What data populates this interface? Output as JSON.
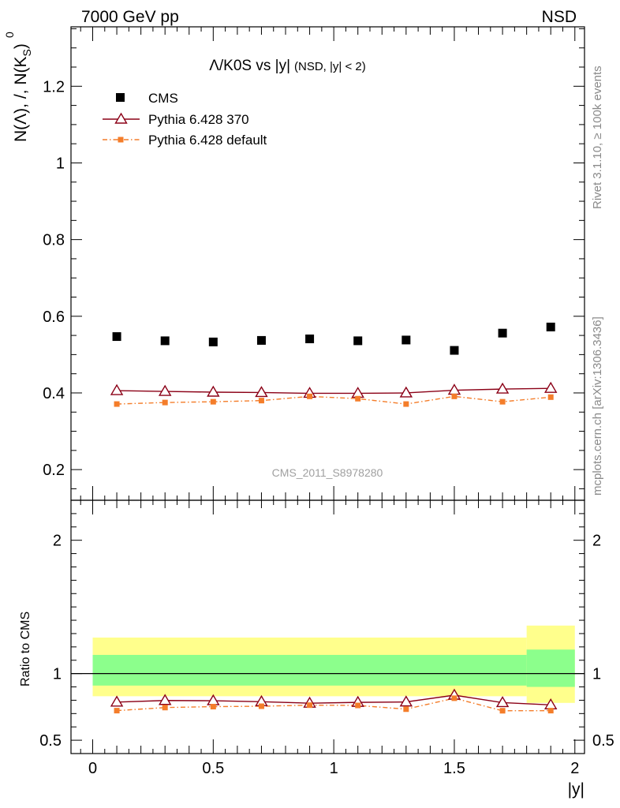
{
  "header": {
    "left": "7000 GeV pp",
    "right": "NSD"
  },
  "side": {
    "rivet": "Rivet 3.1.10, ≥ 100k events",
    "mcplots": "mcplots.cern.ch [arXiv:1306.3436]"
  },
  "chart_data": [
    {
      "type": "scatter",
      "title": "Λ/K0S vs |y|",
      "title_suffix": "(NSD, |y| < 2)",
      "watermark": "CMS_2011_S8978280",
      "ylabel": "N(Λ), /, N(K",
      "ylabel_sup": "0",
      "ylabel_sub": "S",
      "ylabel_close": ")",
      "xlim": [
        -0.09,
        2.04
      ],
      "ylim": [
        0.12,
        1.355
      ],
      "grid": false,
      "legend_placement": "top-left",
      "y_ticks": [
        "0.2",
        "0.4",
        "0.6",
        "0.8",
        "1",
        "1.2"
      ],
      "x": [
        0.1,
        0.3,
        0.5,
        0.7,
        0.9,
        1.1,
        1.3,
        1.5,
        1.7,
        1.9
      ],
      "series": [
        {
          "name": "CMS",
          "color": "#000000",
          "values": [
            0.547,
            0.536,
            0.533,
            0.537,
            0.541,
            0.536,
            0.538,
            0.511,
            0.556,
            0.572
          ]
        },
        {
          "name": "Pythia 6.428 370",
          "color": "#8b0016",
          "values": [
            0.406,
            0.404,
            0.402,
            0.401,
            0.399,
            0.399,
            0.4,
            0.407,
            0.41,
            0.412
          ]
        },
        {
          "name": "Pythia 6.428 default",
          "color": "#f47d2a",
          "values": [
            0.371,
            0.375,
            0.377,
            0.38,
            0.391,
            0.385,
            0.371,
            0.391,
            0.377,
            0.389
          ]
        }
      ]
    },
    {
      "type": "line",
      "ylabel": "Ratio to CMS",
      "xlabel": "|y|",
      "xlim": [
        -0.09,
        2.04
      ],
      "ylim": [
        0.4,
        2.3
      ],
      "y_ticks": [
        "0.5",
        "1",
        "2"
      ],
      "x_ticks": [
        "0",
        "0.5",
        "1",
        "1.5",
        "2"
      ],
      "bands": [
        {
          "x_from": 0.0,
          "x_to": 1.8,
          "yellow": [
            0.83,
            1.27
          ],
          "green": [
            0.91,
            1.14
          ]
        },
        {
          "x_from": 1.8,
          "x_to": 2.0,
          "yellow": [
            0.78,
            1.36
          ],
          "green": [
            0.9,
            1.18
          ]
        }
      ],
      "x": [
        0.1,
        0.3,
        0.5,
        0.7,
        0.9,
        1.1,
        1.3,
        1.5,
        1.7,
        1.9
      ],
      "series": [
        {
          "name": "Pythia 6.428 370",
          "color": "#8b0016",
          "values": [
            0.786,
            0.798,
            0.796,
            0.789,
            0.778,
            0.784,
            0.787,
            0.838,
            0.782,
            0.765
          ]
        },
        {
          "name": "Pythia 6.428 default",
          "color": "#f47d2a",
          "values": [
            0.722,
            0.745,
            0.752,
            0.755,
            0.763,
            0.761,
            0.733,
            0.815,
            0.721,
            0.722
          ]
        }
      ],
      "band_colors": {
        "yellow": "#ffff8c",
        "green": "#8cff8c"
      }
    }
  ]
}
